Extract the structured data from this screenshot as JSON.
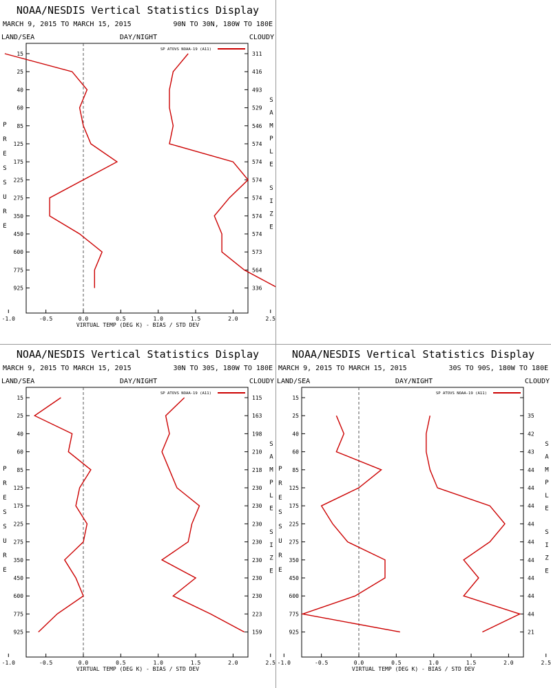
{
  "colors": {
    "series": "#cc0000",
    "axis": "#000000",
    "zero_line": "#555555",
    "divider": "#999999"
  },
  "panels": [
    {
      "title": "NOAA/NESDIS Vertical Statistics Display",
      "date_range": "MARCH 9, 2015 TO MARCH 15, 2015",
      "region": "90N TO 30N, 180W TO 180E",
      "label_left": "LAND/SEA",
      "label_center": "DAY/NIGHT",
      "label_right": "CLOUDY",
      "y_label": "PRESSURE",
      "y2_label": "SAMPLE SIZE",
      "x_label": "VIRTUAL TEMP (DEG K) - BIAS / STD DEV",
      "legend": "SP ATOVS NOAA-19 (A11)",
      "chart_data": {
        "type": "line",
        "title": "NOAA/NESDIS Vertical Statistics Display",
        "xlabel": "VIRTUAL TEMP (DEG K) - BIAS / STD DEV",
        "ylabel": "PRESSURE",
        "xlim": [
          -1.5,
          4.5
        ],
        "x_ticks": [
          "-1.0",
          "-0.5",
          "0.0",
          "0.5",
          "1.0",
          "1.5",
          "2.0",
          "2.5",
          "3.0",
          "3.5",
          "4.0"
        ],
        "pressure_levels": [
          "15",
          "25",
          "40",
          "60",
          "85",
          "125",
          "175",
          "225",
          "275",
          "350",
          "450",
          "600",
          "775",
          "925"
        ],
        "sample_size": [
          "311",
          "416",
          "493",
          "529",
          "546",
          "574",
          "574",
          "574",
          "574",
          "574",
          "574",
          "573",
          "564",
          "336"
        ],
        "legend_position": "top-right",
        "grid": false,
        "series": [
          {
            "name": "Bias",
            "values": [
              -1.05,
              -0.15,
              0.05,
              -0.05,
              0.0,
              0.1,
              0.45,
              0.0,
              -0.45,
              -0.45,
              -0.05,
              0.25,
              0.15,
              0.15
            ]
          },
          {
            "name": "Std Dev",
            "values": [
              1.4,
              1.2,
              1.15,
              1.15,
              1.2,
              1.15,
              2.0,
              2.2,
              1.95,
              1.75,
              1.85,
              1.85,
              2.15,
              2.6
            ]
          }
        ]
      }
    },
    {
      "title": "NOAA/NESDIS Vertical Statistics Display",
      "date_range": "MARCH 9, 2015 TO MARCH 15, 2015",
      "region": "30N TO 30S, 180W TO 180E",
      "label_left": "LAND/SEA",
      "label_center": "DAY/NIGHT",
      "label_right": "CLOUDY",
      "y_label": "PRESSURE",
      "y2_label": "SAMPLE SIZE",
      "x_label": "VIRTUAL TEMP (DEG K) - BIAS / STD DEV",
      "legend": "SP ATOVS NOAA-19 (A11)",
      "chart_data": {
        "type": "line",
        "title": "NOAA/NESDIS Vertical Statistics Display",
        "xlabel": "VIRTUAL TEMP (DEG K) - BIAS / STD DEV",
        "ylabel": "PRESSURE",
        "xlim": [
          -1.5,
          4.5
        ],
        "x_ticks": [
          "-1.0",
          "-0.5",
          "0.0",
          "0.5",
          "1.0",
          "1.5",
          "2.0",
          "2.5",
          "3.0",
          "3.5",
          "4.0"
        ],
        "pressure_levels": [
          "15",
          "25",
          "40",
          "60",
          "85",
          "125",
          "175",
          "225",
          "275",
          "350",
          "450",
          "600",
          "775",
          "925"
        ],
        "sample_size": [
          "115",
          "163",
          "198",
          "210",
          "218",
          "230",
          "230",
          "230",
          "230",
          "230",
          "230",
          "230",
          "223",
          "159"
        ],
        "legend_position": "top-right",
        "grid": false,
        "series": [
          {
            "name": "Bias",
            "values": [
              -0.3,
              -0.65,
              -0.15,
              -0.2,
              0.1,
              -0.05,
              -0.1,
              0.05,
              0.0,
              -0.25,
              -0.1,
              0.0,
              -0.35,
              -0.6
            ]
          },
          {
            "name": "Std Dev",
            "values": [
              1.35,
              1.1,
              1.15,
              1.05,
              1.15,
              1.25,
              1.55,
              1.45,
              1.4,
              1.05,
              1.5,
              1.2,
              1.7,
              2.15
            ]
          }
        ]
      }
    },
    {
      "title": "NOAA/NESDIS Vertical Statistics Display",
      "date_range": "MARCH 9, 2015 TO MARCH 15, 2015",
      "region": "30S TO 90S, 180W TO 180E",
      "label_left": "LAND/SEA",
      "label_center": "DAY/NIGHT",
      "label_right": "CLOUDY",
      "y_label": "PRESSURE",
      "y2_label": "SAMPLE SIZE",
      "x_label": "VIRTUAL TEMP (DEG K) - BIAS / STD DEV",
      "legend": "SP ATOVS NOAA-19 (A11)",
      "chart_data": {
        "type": "line",
        "title": "NOAA/NESDIS Vertical Statistics Display",
        "xlabel": "VIRTUAL TEMP (DEG K) - BIAS / STD DEV",
        "ylabel": "PRESSURE",
        "xlim": [
          -1.5,
          4.5
        ],
        "x_ticks": [
          "-1.0",
          "-0.5",
          "0.0",
          "0.5",
          "1.0",
          "1.5",
          "2.0",
          "2.5",
          "3.0",
          "3.5",
          "4.0"
        ],
        "pressure_levels": [
          "15",
          "25",
          "40",
          "60",
          "85",
          "125",
          "175",
          "225",
          "275",
          "350",
          "450",
          "600",
          "775",
          "925"
        ],
        "sample_size": [
          "",
          "35",
          "42",
          "43",
          "44",
          "44",
          "44",
          "44",
          "44",
          "44",
          "44",
          "44",
          "44",
          "21"
        ],
        "legend_position": "top-right",
        "grid": false,
        "series": [
          {
            "name": "Bias",
            "values": [
              null,
              -0.3,
              -0.2,
              -0.3,
              0.3,
              0.0,
              -0.5,
              -0.35,
              -0.15,
              0.35,
              0.35,
              -0.05,
              -0.75,
              0.55
            ]
          },
          {
            "name": "Std Dev",
            "values": [
              null,
              0.95,
              0.9,
              0.9,
              0.95,
              1.05,
              1.75,
              1.95,
              1.75,
              1.4,
              1.6,
              1.4,
              2.15,
              1.65
            ]
          }
        ]
      }
    }
  ]
}
